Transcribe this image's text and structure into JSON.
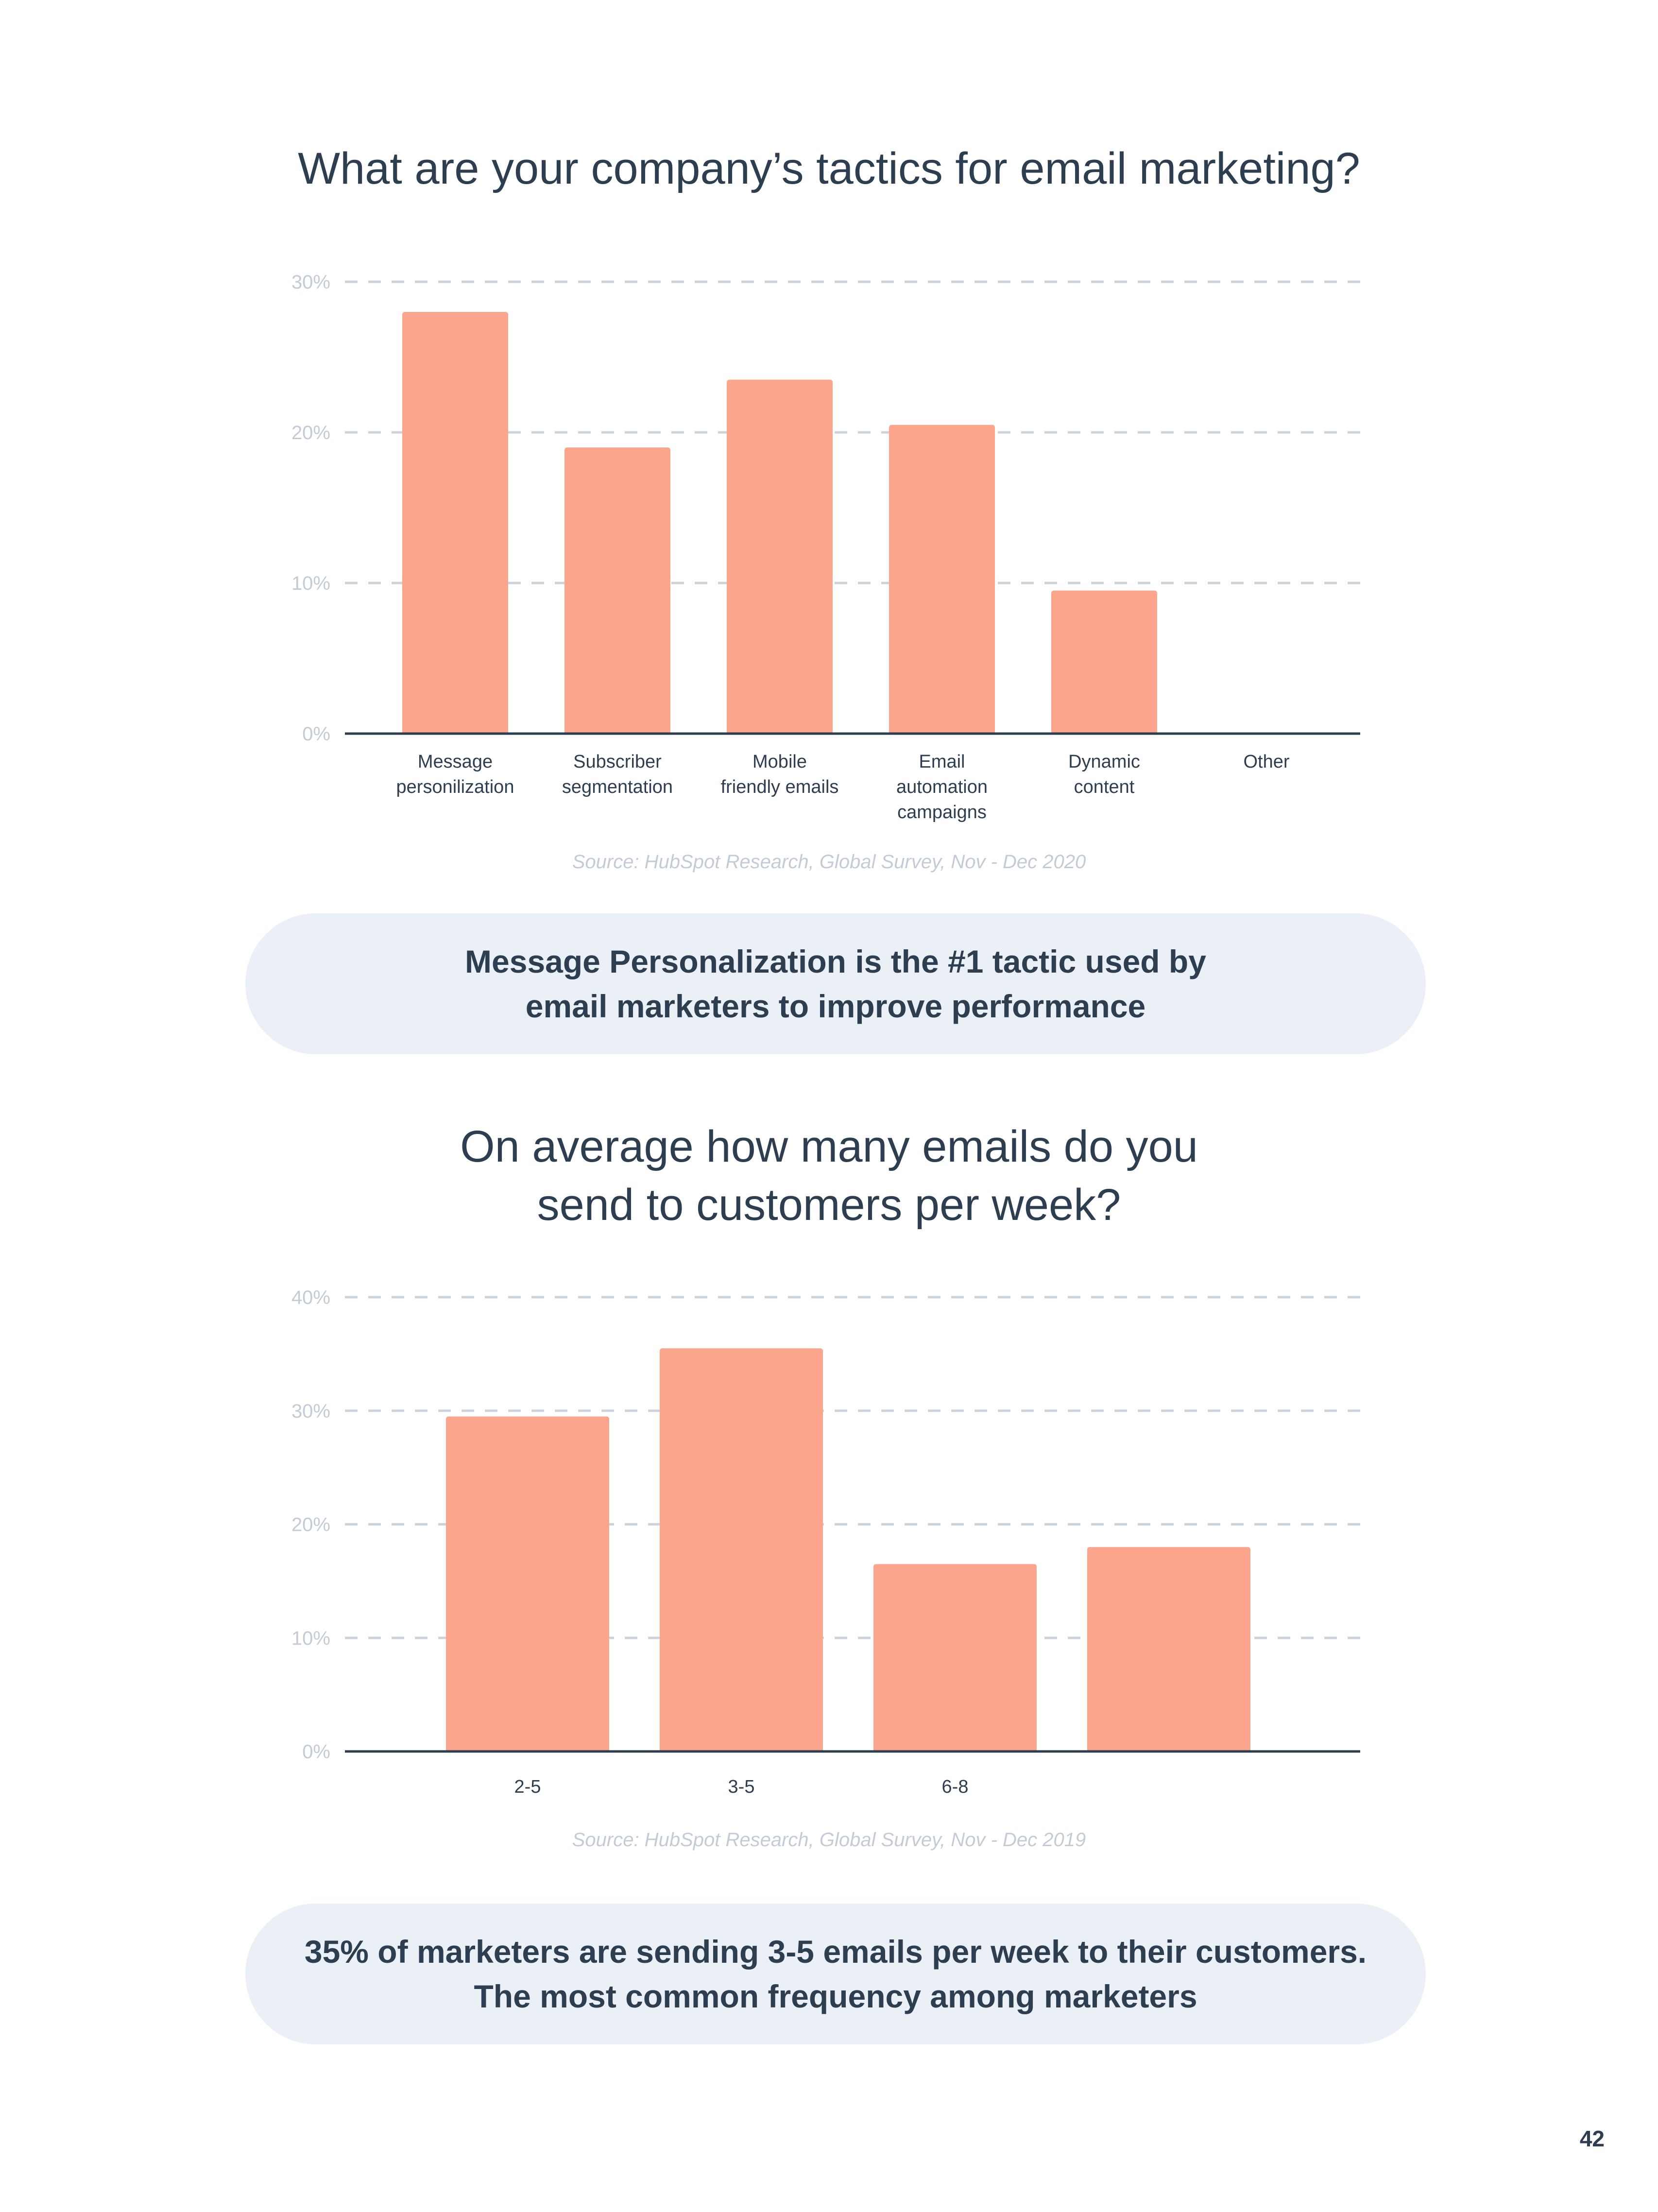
{
  "chart_data": [
    {
      "type": "bar",
      "title": "What are your company’s tactics for email marketing?",
      "categories": [
        [
          "Message",
          "personilization"
        ],
        [
          "Subscriber",
          "segmentation"
        ],
        [
          "Mobile",
          "friendly emails"
        ],
        [
          "Email",
          "automation",
          "campaigns"
        ],
        [
          "Dynamic",
          "content"
        ],
        [
          "Other"
        ]
      ],
      "values": [
        28,
        19,
        23.5,
        20.5,
        9.5,
        0
      ],
      "yticks": [
        "0%",
        "10%",
        "20%",
        "30%"
      ],
      "ylim": [
        0,
        30
      ],
      "grid": true,
      "xlabel": "",
      "ylabel": "",
      "source": "Source: HubSpot Research, Global Survey, Nov - Dec 2020"
    },
    {
      "type": "bar",
      "title": "On average how many emails do you send to customers per week?",
      "title_lines": [
        "On average how many emails do you",
        "send to customers per week?"
      ],
      "categories": [
        [
          "2-5"
        ],
        [
          "3-5"
        ],
        [
          "6-8"
        ],
        [
          ""
        ]
      ],
      "values": [
        29.5,
        35.5,
        16.5,
        18
      ],
      "yticks": [
        "0%",
        "10%",
        "20%",
        "30%",
        "40%"
      ],
      "ylim": [
        0,
        40
      ],
      "grid": true,
      "xlabel": "",
      "ylabel": "",
      "source": "Source: HubSpot Research, Global Survey, Nov - Dec 2019"
    }
  ],
  "callouts": [
    [
      "Message Personalization is the #1 tactic used by",
      "email marketers to improve performance"
    ],
    [
      "35% of marketers are sending 3-5 emails per week to their customers.",
      "The most common frequency among marketers"
    ]
  ],
  "page_number": "42",
  "colors": {
    "bar": "#fba68c",
    "axis": "#2d3e50",
    "grid": "#cbd3dc",
    "text": "#2d3e50",
    "callout_bg": "#eaf0f6"
  }
}
